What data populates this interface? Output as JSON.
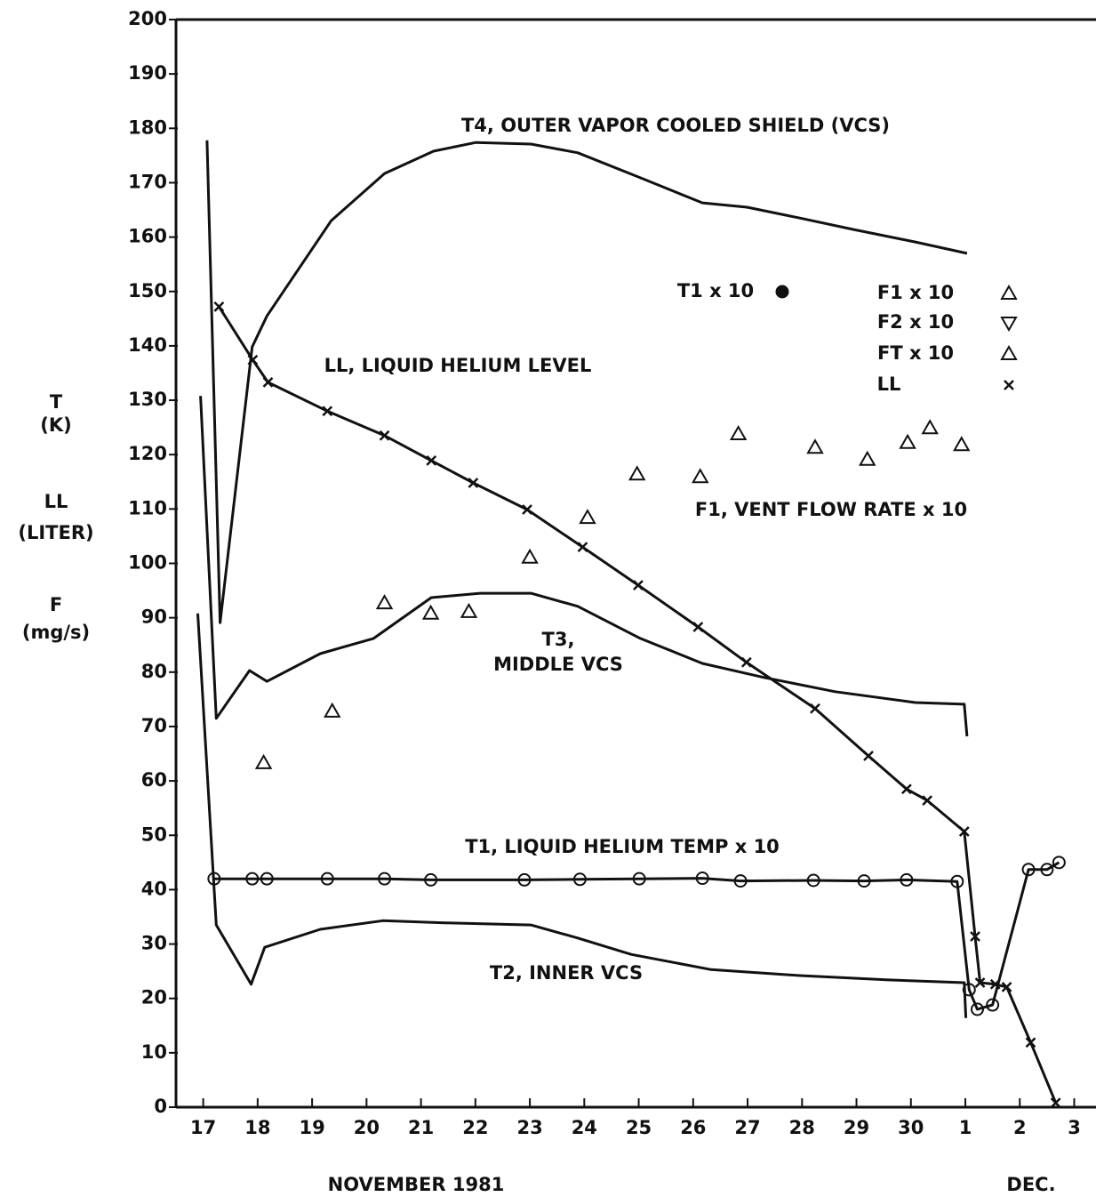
{
  "chart_data": {
    "type": "line",
    "axis_labels": [
      "T",
      "(K)",
      "LL",
      "(LITER)",
      "F",
      "(mg/s)"
    ],
    "x_titles": [
      "NOVEMBER 1981",
      "DEC."
    ],
    "xlim": [
      16.5,
      33.4
    ],
    "xticks": [
      17,
      18,
      19,
      20,
      21,
      22,
      23,
      24,
      25,
      26,
      27,
      28,
      29,
      30,
      {
        "value": 31,
        "label": "1"
      },
      {
        "value": 32,
        "label": "2"
      },
      {
        "value": 33,
        "label": "3"
      }
    ],
    "ylim": [
      0,
      200
    ],
    "yticks": [
      0,
      10,
      20,
      30,
      40,
      50,
      60,
      70,
      80,
      90,
      100,
      110,
      120,
      130,
      140,
      150,
      160,
      170,
      180,
      190,
      200
    ],
    "legend": [
      {
        "label": "T1 x 10",
        "marker": "dot"
      },
      {
        "label": "F1 x 10",
        "marker": "triangle"
      },
      {
        "label": "F2 x 10",
        "marker": "triangle-down"
      },
      {
        "label": "FT x 10",
        "marker": "triangle"
      },
      {
        "label": "LL",
        "marker": "x"
      }
    ],
    "series": [
      {
        "label": [
          "T4, OUTER VAPOR COOLED SHIELD (VCS)"
        ],
        "color": "#111",
        "mode": "lines",
        "marker": "none",
        "x": [
          17.07,
          17.31,
          17.9,
          18.17,
          19.35,
          20.33,
          21.23,
          22.01,
          23.02,
          23.88,
          25.03,
          26.17,
          26.99,
          27.96,
          28.94,
          30.08,
          31.03
        ],
        "values": [
          177.8,
          89.1,
          139.8,
          145.5,
          163.0,
          171.7,
          175.8,
          177.4,
          177.1,
          175.5,
          170.9,
          166.3,
          165.5,
          163.5,
          161.4,
          159.1,
          157.0
        ]
      },
      {
        "label": [
          "T3,",
          "MIDDLE VCS"
        ],
        "color": "#111",
        "mode": "lines",
        "marker": "none",
        "x": [
          16.95,
          17.24,
          17.85,
          18.17,
          19.15,
          20.13,
          21.19,
          22.09,
          23.02,
          23.88,
          25.03,
          26.17,
          27.31,
          28.61,
          30.08,
          30.98,
          31.03
        ],
        "values": [
          130.8,
          71.5,
          80.3,
          78.3,
          83.4,
          86.2,
          93.7,
          94.5,
          94.5,
          92.1,
          86.2,
          81.6,
          79.0,
          76.4,
          74.4,
          74.1,
          68.2
        ]
      },
      {
        "label": [
          "T2, INNER VCS"
        ],
        "color": "#111",
        "mode": "lines",
        "marker": "none",
        "x": [
          16.9,
          17.24,
          17.88,
          18.13,
          19.15,
          20.3,
          21.44,
          23.02,
          23.88,
          24.86,
          26.33,
          27.96,
          29.59,
          30.98,
          31.01
        ],
        "values": [
          90.8,
          33.5,
          22.6,
          29.4,
          32.7,
          34.3,
          33.9,
          33.5,
          31.1,
          28.1,
          25.3,
          24.2,
          23.4,
          22.9,
          16.4
        ]
      },
      {
        "label": [
          "T1, LIQUID HELIUM TEMP x 10"
        ],
        "color": "#111",
        "mode": "lines+markers",
        "marker": "circle",
        "x": [
          17.2,
          17.9,
          18.17,
          19.28,
          20.33,
          21.18,
          22.9,
          23.92,
          25.01,
          26.17,
          26.87,
          28.21,
          29.14,
          29.92,
          30.85,
          31.07,
          31.22,
          31.5,
          32.16,
          32.5,
          32.72
        ],
        "values": [
          42.0,
          42.0,
          42.0,
          42.0,
          42.0,
          41.8,
          41.8,
          41.9,
          42.0,
          42.1,
          41.6,
          41.7,
          41.6,
          41.8,
          41.5,
          21.6,
          18.0,
          18.8,
          43.7,
          43.7,
          45.0
        ]
      },
      {
        "label": [
          "LL, LIQUID HELIUM LEVEL"
        ],
        "color": "#111",
        "mode": "lines+markers",
        "marker": "x",
        "x": [
          17.29,
          17.91,
          18.19,
          19.28,
          20.33,
          21.19,
          21.96,
          22.95,
          23.97,
          24.99,
          26.09,
          26.98,
          28.24,
          29.22,
          29.92,
          30.3,
          30.98,
          31.18,
          31.27,
          31.55,
          31.76,
          32.2,
          32.66
        ],
        "values": [
          147.2,
          137.4,
          133.3,
          128.0,
          123.5,
          118.9,
          114.8,
          109.9,
          103.0,
          96.0,
          88.3,
          81.8,
          73.3,
          64.6,
          58.5,
          56.4,
          50.7,
          31.4,
          22.9,
          22.6,
          22.1,
          11.9,
          0.8
        ]
      },
      {
        "label": [
          "F1, VENT FLOW RATE x 10"
        ],
        "color": "#111",
        "mode": "markers",
        "marker": "triangle",
        "x": [
          18.11,
          19.37,
          20.33,
          21.18,
          21.88,
          23.0,
          24.06,
          24.97,
          26.13,
          26.83,
          28.24,
          29.2,
          29.94,
          30.35,
          30.93
        ],
        "values": [
          63.3,
          72.8,
          92.7,
          90.8,
          91.1,
          101.1,
          108.4,
          116.4,
          115.9,
          123.8,
          121.3,
          119.1,
          122.2,
          124.9,
          121.8
        ]
      }
    ]
  }
}
